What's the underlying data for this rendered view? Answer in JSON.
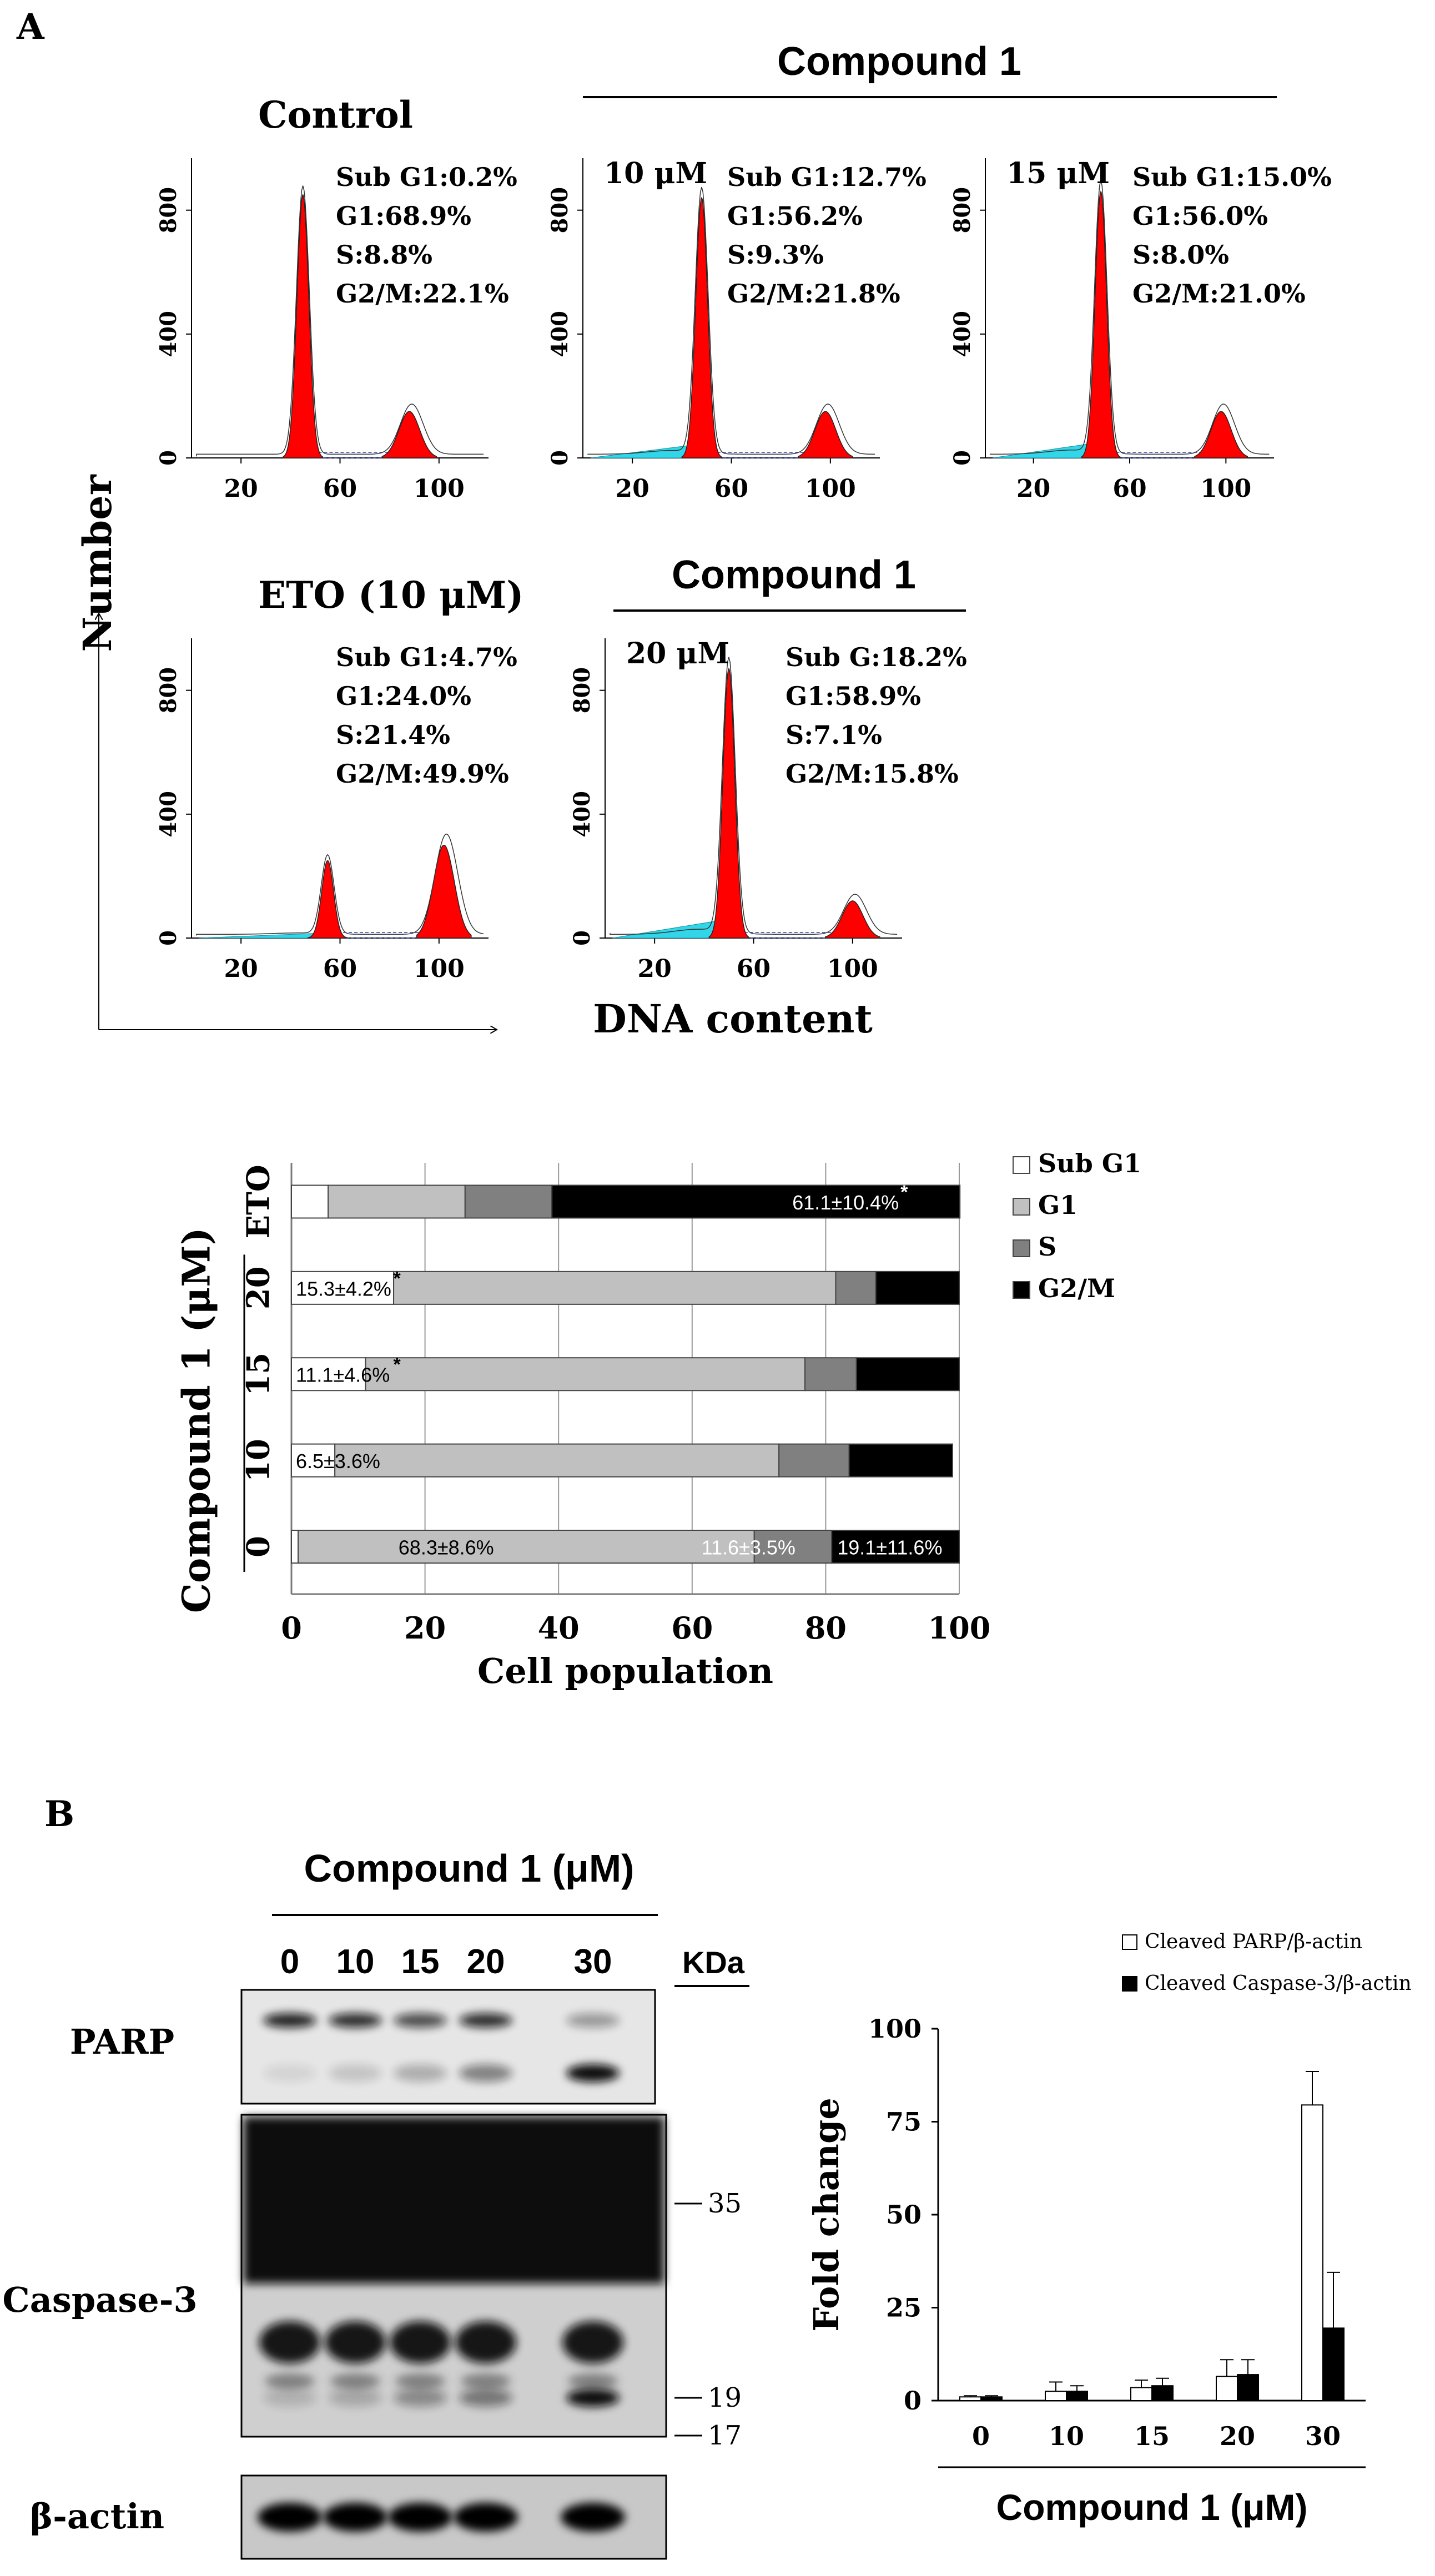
{
  "figure": {
    "panel_a_label": "A",
    "panel_b_label": "B",
    "number_axis_label": "Number",
    "dna_content_label": "DNA content",
    "compound_header_top": "Compound 1",
    "compound_header_bottom": "Compound 1"
  },
  "histograms": [
    {
      "title": "Control",
      "conc_label": "",
      "stats": [
        "Sub G1:0.2%",
        "G1:68.9%",
        "S:8.8%",
        "G2/M:22.1%"
      ],
      "y_ticks": [
        "0",
        "400",
        "800"
      ],
      "x_ticks": [
        "20",
        "60",
        "100"
      ],
      "g1_pos": 45,
      "g1_height": 850,
      "g2_pos": 88,
      "g2_height": 150,
      "subg1_level": 0
    },
    {
      "title": "",
      "conc_label": "10 μM",
      "stats": [
        "Sub G1:12.7%",
        "G1:56.2%",
        "S:9.3%",
        "G2/M:21.8%"
      ],
      "y_ticks": [
        "0",
        "400",
        "800"
      ],
      "x_ticks": [
        "20",
        "60",
        "100"
      ],
      "g1_pos": 48,
      "g1_height": 840,
      "g2_pos": 98,
      "g2_height": 150,
      "subg1_level": 40
    },
    {
      "title": "",
      "conc_label": "15 μM",
      "stats": [
        "Sub G1:15.0%",
        "G1:56.0%",
        "S:8.0%",
        "G2/M:21.0%"
      ],
      "y_ticks": [
        "0",
        "400",
        "800"
      ],
      "x_ticks": [
        "20",
        "60",
        "100"
      ],
      "g1_pos": 48,
      "g1_height": 860,
      "g2_pos": 98,
      "g2_height": 150,
      "subg1_level": 45
    },
    {
      "title": "ETO (10 μM)",
      "conc_label": "",
      "stats": [
        "Sub G1:4.7%",
        "G1:24.0%",
        "S:21.4%",
        "G2/M:49.9%"
      ],
      "y_ticks": [
        "0",
        "400",
        "800"
      ],
      "x_ticks": [
        "20",
        "60",
        "100"
      ],
      "g1_pos": 55,
      "g1_height": 250,
      "g2_pos": 102,
      "g2_height": 300,
      "subg1_level": 15
    },
    {
      "title": "",
      "conc_label": "20 μM",
      "stats": [
        "Sub G:18.2%",
        "G1:58.9%",
        "S:7.1%",
        "G2/M:15.8%"
      ],
      "y_ticks": [
        "0",
        "400",
        "800"
      ],
      "x_ticks": [
        "20",
        "60",
        "100"
      ],
      "g1_pos": 50,
      "g1_height": 870,
      "g2_pos": 100,
      "g2_height": 120,
      "subg1_level": 55
    }
  ],
  "chart_data": [
    {
      "type": "bar",
      "orientation": "horizontal-stacked",
      "xlabel": "Cell population",
      "ylabel": "Compound 1 (μM)",
      "xlim": [
        0,
        100
      ],
      "x_ticks": [
        "0",
        "20",
        "40",
        "60",
        "80",
        "100"
      ],
      "categories": [
        "ETO",
        "20",
        "15",
        "10",
        "0"
      ],
      "series": [
        {
          "name": "Sub G1",
          "color": "#ffffff",
          "values": [
            5.5,
            15.3,
            11.1,
            6.5,
            1.0
          ]
        },
        {
          "name": "G1",
          "color": "#c0c0c0",
          "values": [
            20.5,
            66.2,
            65.8,
            66.5,
            68.3
          ]
        },
        {
          "name": "S",
          "color": "#808080",
          "values": [
            13.0,
            6.0,
            7.7,
            10.5,
            11.6
          ]
        },
        {
          "name": "G2/M",
          "color": "#000000",
          "values": [
            61.1,
            12.5,
            15.4,
            15.5,
            19.1
          ]
        }
      ],
      "annotations": [
        {
          "category": "ETO",
          "series": "G2/M",
          "text": "61.1±10.4%",
          "star": "*"
        },
        {
          "category": "20",
          "series": "Sub G1",
          "text": "15.3±4.2%",
          "star": "*"
        },
        {
          "category": "15",
          "series": "Sub G1",
          "text": "11.1±4.6%",
          "star": "*"
        },
        {
          "category": "10",
          "series": "Sub G1",
          "text": "6.5±3.6%",
          "star": ""
        },
        {
          "category": "0",
          "series": "G1",
          "text": "68.3±8.6%",
          "star": ""
        },
        {
          "category": "0",
          "series": "S",
          "text": "11.6±3.5%",
          "star": ""
        },
        {
          "category": "0",
          "series": "G2/M",
          "text": "19.1±11.6%",
          "star": ""
        }
      ],
      "legend": [
        "Sub G1",
        "G1",
        "S",
        "G2/M"
      ],
      "legend_position": "right"
    },
    {
      "type": "bar",
      "xlabel": "Compound 1 (μM)",
      "ylabel": "Fold change",
      "ylim": [
        0,
        100
      ],
      "y_ticks": [
        "0",
        "25",
        "50",
        "75",
        "100"
      ],
      "categories": [
        "0",
        "10",
        "15",
        "20",
        "30"
      ],
      "series": [
        {
          "name": "Cleaved PARP/β-actin",
          "color": "#ffffff",
          "values": [
            1,
            2.5,
            3.5,
            6.5,
            79.5
          ],
          "errors": [
            0.3,
            2.5,
            2,
            4.5,
            9
          ]
        },
        {
          "name": "Cleaved Caspase-3/β-actin",
          "color": "#000000",
          "values": [
            1,
            2.5,
            4,
            7,
            19.5
          ],
          "errors": [
            0.3,
            1.5,
            2,
            4,
            15
          ]
        }
      ],
      "legend_position": "top-right"
    }
  ],
  "blot": {
    "header": "Compound 1 (μM)",
    "lanes": [
      "0",
      "10",
      "15",
      "20",
      "30"
    ],
    "kda_label": "KDa",
    "rows": [
      "PARP",
      "Caspase-3",
      "β-actin"
    ],
    "markers": [
      "35",
      "19",
      "17"
    ]
  }
}
